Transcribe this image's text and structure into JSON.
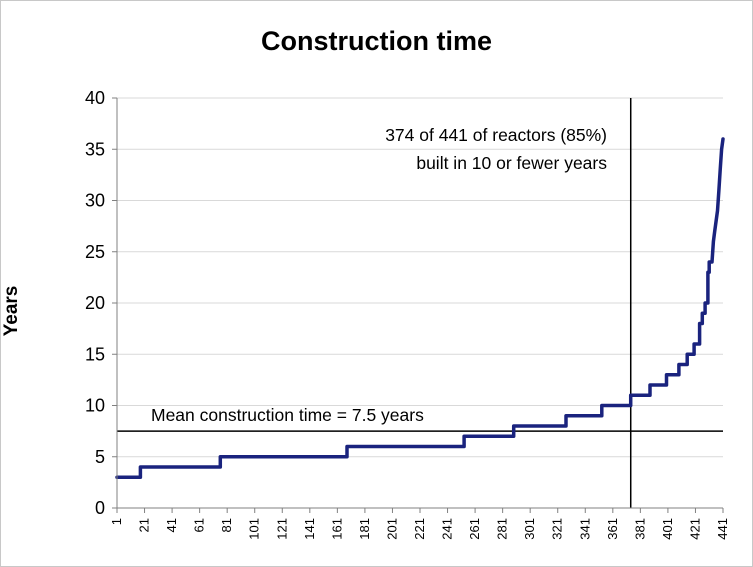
{
  "chart_data": {
    "type": "line",
    "title": "Construction time",
    "xlabel": "",
    "ylabel": "Years",
    "xlim": [
      1,
      441
    ],
    "ylim": [
      0,
      40
    ],
    "yticks": [
      0,
      5,
      10,
      15,
      20,
      25,
      30,
      35,
      40
    ],
    "xticks": [
      1,
      21,
      41,
      61,
      81,
      101,
      121,
      141,
      161,
      181,
      201,
      221,
      241,
      261,
      281,
      301,
      321,
      341,
      361,
      381,
      401,
      421,
      441
    ],
    "grid": "horizontal",
    "legend": "none",
    "series": [
      {
        "color": "#1a237e",
        "points": [
          [
            1,
            3
          ],
          [
            18,
            3
          ],
          [
            18,
            4
          ],
          [
            76,
            4
          ],
          [
            76,
            5
          ],
          [
            168,
            5
          ],
          [
            168,
            6
          ],
          [
            253,
            6
          ],
          [
            253,
            7
          ],
          [
            289,
            7
          ],
          [
            289,
            8
          ],
          [
            327,
            8
          ],
          [
            327,
            9
          ],
          [
            353,
            9
          ],
          [
            353,
            10
          ],
          [
            374,
            10
          ],
          [
            374,
            11
          ],
          [
            388,
            11
          ],
          [
            388,
            12
          ],
          [
            400,
            12
          ],
          [
            400,
            13
          ],
          [
            409,
            13
          ],
          [
            409,
            14
          ],
          [
            415,
            14
          ],
          [
            415,
            15
          ],
          [
            420,
            15
          ],
          [
            420,
            16
          ],
          [
            424,
            16
          ],
          [
            424,
            18
          ],
          [
            426,
            18
          ],
          [
            426,
            19
          ],
          [
            428,
            19
          ],
          [
            428,
            20
          ],
          [
            430,
            20
          ],
          [
            430,
            23
          ],
          [
            431,
            23
          ],
          [
            431,
            24
          ],
          [
            433,
            24
          ],
          [
            434,
            26
          ],
          [
            435,
            27
          ],
          [
            436,
            28
          ],
          [
            437,
            29
          ],
          [
            438,
            31
          ],
          [
            439,
            33
          ],
          [
            440,
            35
          ],
          [
            441,
            36
          ]
        ]
      }
    ],
    "reference_lines": [
      {
        "orientation": "horizontal",
        "value": 7.5,
        "color": "#000000"
      },
      {
        "orientation": "vertical",
        "value": 374,
        "color": "#000000"
      }
    ],
    "annotations": {
      "vertical_note_line1": "374 of 441 of reactors (85%)",
      "vertical_note_line2": "built in 10 or fewer years",
      "mean_note": "Mean construction time = 7.5 years"
    }
  }
}
